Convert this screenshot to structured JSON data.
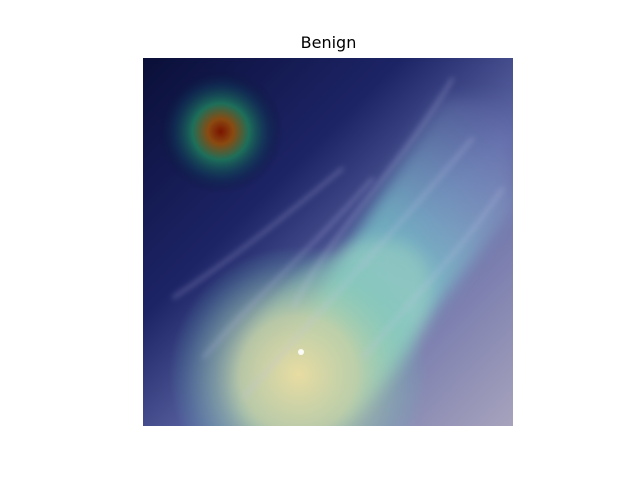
{
  "figure": {
    "title": "Benign",
    "image_description_icon": "heatmap-overlay-image"
  },
  "colors": {
    "background": "#ffffff",
    "title_text": "#000000"
  }
}
